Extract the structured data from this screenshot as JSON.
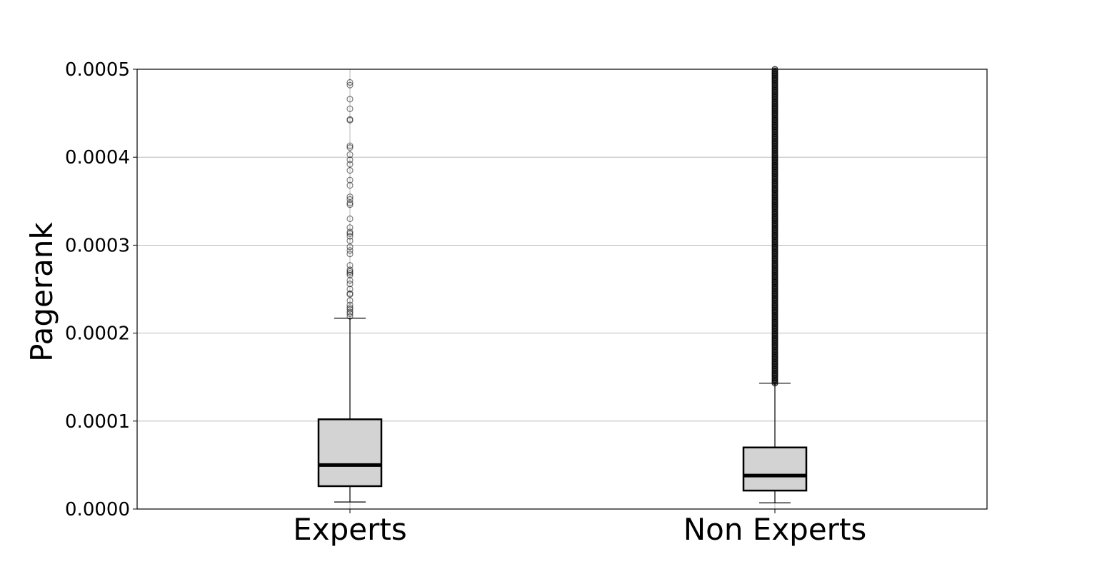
{
  "chart_data": {
    "type": "box",
    "title": "",
    "xlabel": "",
    "ylabel": "Pagerank",
    "ylim": [
      0,
      0.0005
    ],
    "y_ticks": [
      "0.0000",
      "0.0001",
      "0.0002",
      "0.0003",
      "0.0004",
      "0.0005"
    ],
    "y_tick_values": [
      0,
      0.0001,
      0.0002,
      0.0003,
      0.0004,
      0.0005
    ],
    "grid": "horizontal",
    "box_color": "#d3d3d3",
    "line_color": "#000000",
    "categories": [
      "Experts",
      "Non Experts"
    ],
    "boxes": [
      {
        "label": "Experts",
        "whisker_low": 8e-06,
        "q1": 2.6e-05,
        "median": 5e-05,
        "q3": 0.000102,
        "whisker_high": 0.000217,
        "outliers": [
          0.000219,
          0.000222,
          0.000224,
          0.000227,
          0.000229,
          0.000232,
          0.000237,
          0.000244,
          0.000245,
          0.00025,
          0.000256,
          0.00026,
          0.000266,
          0.000268,
          0.00027,
          0.000272,
          0.000277,
          0.00029,
          0.000294,
          0.000298,
          0.000305,
          0.00031,
          0.000313,
          0.000315,
          0.00032,
          0.00033,
          0.000346,
          0.000348,
          0.000352,
          0.000355,
          0.000368,
          0.000374,
          0.000385,
          0.000392,
          0.000397,
          0.000403,
          0.000411,
          0.000413,
          0.000442,
          0.000443,
          0.000455,
          0.000466,
          0.000482,
          0.000485
        ]
      },
      {
        "label": "Non Experts",
        "whisker_low": 7e-06,
        "q1": 2.1e-05,
        "median": 3.8e-05,
        "q3": 7e-05,
        "whisker_high": 0.000143,
        "outliers_range": [
          0.000143,
          0.0005
        ],
        "outliers_note": "dense continuous outliers"
      }
    ]
  }
}
